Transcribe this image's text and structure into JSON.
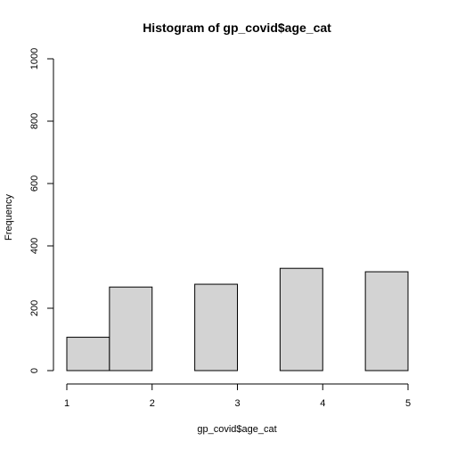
{
  "chart_data": {
    "type": "bar",
    "title": "Histogram of gp_covid$age_cat",
    "xlabel": "gp_covid$age_cat",
    "ylabel": "Frequency",
    "bins": [
      {
        "x0": 1.0,
        "x1": 1.5,
        "value": 107
      },
      {
        "x0": 1.5,
        "x1": 2.0,
        "value": 268
      },
      {
        "x0": 2.0,
        "x1": 2.5,
        "value": 0
      },
      {
        "x0": 2.5,
        "x1": 3.0,
        "value": 277
      },
      {
        "x0": 3.0,
        "x1": 3.5,
        "value": 0
      },
      {
        "x0": 3.5,
        "x1": 4.0,
        "value": 328
      },
      {
        "x0": 4.0,
        "x1": 4.5,
        "value": 0
      },
      {
        "x0": 4.5,
        "x1": 5.0,
        "value": 317
      }
    ],
    "xlim": [
      1,
      5
    ],
    "ylim": [
      0,
      1000
    ],
    "x_ticks": [
      "1",
      "2",
      "3",
      "4",
      "5"
    ],
    "y_ticks": [
      "0",
      "200",
      "400",
      "600",
      "800",
      "1000"
    ],
    "grid": false,
    "bar_color": "#d3d3d3",
    "edge_color": "#000000"
  }
}
